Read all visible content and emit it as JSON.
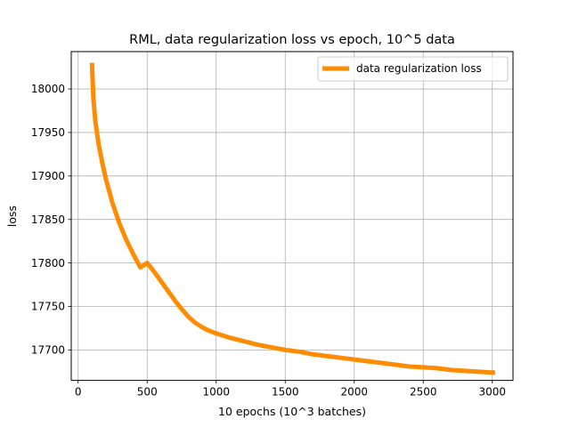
{
  "chart_data": {
    "type": "line",
    "title": "RML, data regularization loss vs epoch, 10^5 data",
    "xlabel": "10 epochs (10^3 batches)",
    "ylabel": "loss",
    "xlim": [
      -50,
      3150
    ],
    "ylim": [
      17665,
      18043
    ],
    "x_ticks": [
      0,
      500,
      1000,
      1500,
      2000,
      2500,
      3000
    ],
    "y_ticks": [
      17700,
      17750,
      17800,
      17850,
      17900,
      17950,
      18000
    ],
    "grid": true,
    "legend_position": "upper right",
    "series": [
      {
        "name": "data regularization loss",
        "color": "#ff8c00",
        "x": [
          100,
          110,
          125,
          150,
          175,
          200,
          250,
          300,
          350,
          400,
          450,
          500,
          550,
          600,
          650,
          700,
          750,
          800,
          850,
          900,
          950,
          1000,
          1100,
          1200,
          1300,
          1400,
          1500,
          1600,
          1700,
          1800,
          1900,
          2000,
          2100,
          2200,
          2300,
          2400,
          2500,
          2600,
          2700,
          2800,
          2900,
          3000,
          3020
        ],
        "y": [
          18030,
          17990,
          17962,
          17935,
          17915,
          17897,
          17868,
          17845,
          17826,
          17810,
          17795,
          17800,
          17790,
          17779,
          17768,
          17757,
          17747,
          17738,
          17731,
          17726,
          17722,
          17719,
          17714,
          17710,
          17706,
          17703,
          17700,
          17698,
          17695,
          17693,
          17691,
          17689,
          17687,
          17685,
          17683,
          17681,
          17680,
          17679,
          17677,
          17676,
          17675,
          17674,
          17674
        ]
      }
    ]
  }
}
